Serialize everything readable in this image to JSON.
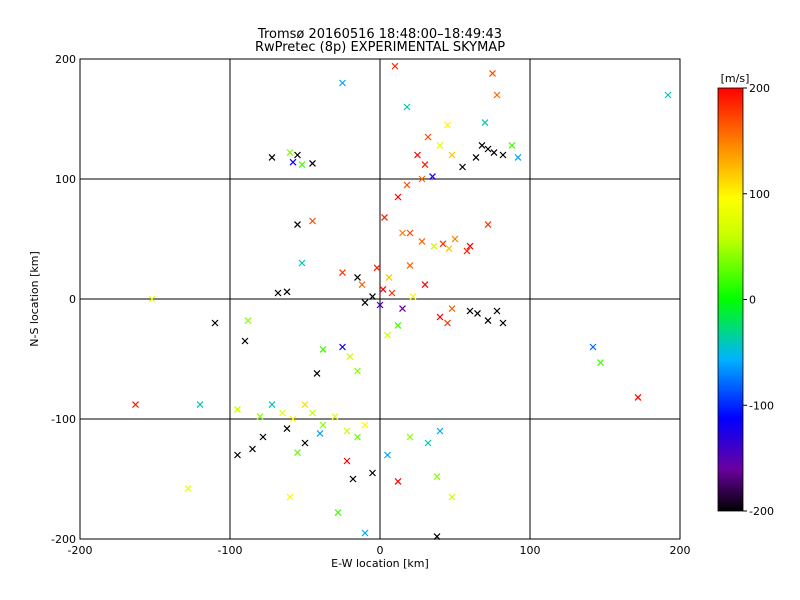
{
  "chart_data": {
    "type": "scatter",
    "title": "Tromsø 20160516 18:48:00–18:49:43",
    "subtitle": "RwPretec (8p) EXPERIMENTAL SKYMAP",
    "xlabel": "E-W location [km]",
    "ylabel": "N-S location [km]",
    "xlim": [
      -200,
      200
    ],
    "ylim": [
      -200,
      200
    ],
    "xticks": [
      "-200",
      "-100",
      "0",
      "100",
      "200"
    ],
    "yticks": [
      "-200",
      "-100",
      "0",
      "100",
      "200"
    ],
    "grid": true,
    "colorbar": {
      "label": "[m/s]",
      "range": [
        -200,
        200
      ],
      "ticks": [
        "200",
        "100",
        "0",
        "-100",
        "-200"
      ]
    },
    "points": [
      {
        "x": -55,
        "y": 120,
        "v": -200,
        "m": "x"
      },
      {
        "x": -72,
        "y": 118,
        "v": -200,
        "m": "x"
      },
      {
        "x": -45,
        "y": 113,
        "v": -200,
        "m": "x"
      },
      {
        "x": -58,
        "y": 114,
        "v": -120,
        "m": "x"
      },
      {
        "x": -60,
        "y": 122,
        "v": 40,
        "m": "x"
      },
      {
        "x": -52,
        "y": 112,
        "v": 20,
        "m": "x"
      },
      {
        "x": -55,
        "y": 62,
        "v": -200,
        "m": "x"
      },
      {
        "x": -45,
        "y": 65,
        "v": 170,
        "m": "x"
      },
      {
        "x": -52,
        "y": 30,
        "v": -40,
        "m": "x"
      },
      {
        "x": -25,
        "y": 180,
        "v": -60,
        "m": "x"
      },
      {
        "x": 10,
        "y": 194,
        "v": 180,
        "m": "x"
      },
      {
        "x": 75,
        "y": 188,
        "v": 170,
        "m": "x"
      },
      {
        "x": 78,
        "y": 170,
        "v": 160,
        "m": "x"
      },
      {
        "x": 192,
        "y": 170,
        "v": -40,
        "m": "x"
      },
      {
        "x": 45,
        "y": 145,
        "v": 100,
        "m": "x"
      },
      {
        "x": 70,
        "y": 147,
        "v": -40,
        "m": "x"
      },
      {
        "x": 40,
        "y": 128,
        "v": 80,
        "m": "x"
      },
      {
        "x": 32,
        "y": 135,
        "v": 170,
        "m": "x"
      },
      {
        "x": 48,
        "y": 120,
        "v": 120,
        "m": "x"
      },
      {
        "x": 68,
        "y": 128,
        "v": -200,
        "m": "x"
      },
      {
        "x": 72,
        "y": 125,
        "v": -200,
        "m": "x"
      },
      {
        "x": 76,
        "y": 122,
        "v": -200,
        "m": "x"
      },
      {
        "x": 82,
        "y": 120,
        "v": -200,
        "m": "x"
      },
      {
        "x": 64,
        "y": 118,
        "v": -200,
        "m": "x"
      },
      {
        "x": 55,
        "y": 110,
        "v": -200,
        "m": "x"
      },
      {
        "x": 88,
        "y": 128,
        "v": 20,
        "m": "x"
      },
      {
        "x": 92,
        "y": 118,
        "v": -60,
        "m": "x"
      },
      {
        "x": 25,
        "y": 120,
        "v": 200,
        "m": "x"
      },
      {
        "x": 30,
        "y": 112,
        "v": 190,
        "m": "x"
      },
      {
        "x": 35,
        "y": 102,
        "v": -120,
        "m": "x"
      },
      {
        "x": 28,
        "y": 100,
        "v": 160,
        "m": "x"
      },
      {
        "x": 18,
        "y": 95,
        "v": 170,
        "m": "x"
      },
      {
        "x": 12,
        "y": 85,
        "v": 200,
        "m": "x"
      },
      {
        "x": 3,
        "y": 68,
        "v": 190,
        "m": "x"
      },
      {
        "x": 15,
        "y": 55,
        "v": 150,
        "m": "x"
      },
      {
        "x": 72,
        "y": 62,
        "v": 180,
        "m": "x"
      },
      {
        "x": 60,
        "y": 44,
        "v": 200,
        "m": "x"
      },
      {
        "x": 58,
        "y": 40,
        "v": 190,
        "m": "x"
      },
      {
        "x": 50,
        "y": 50,
        "v": 150,
        "m": "x"
      },
      {
        "x": 42,
        "y": 46,
        "v": 180,
        "m": "x"
      },
      {
        "x": 46,
        "y": 42,
        "v": 120,
        "m": "x"
      },
      {
        "x": 36,
        "y": 44,
        "v": 60,
        "m": "x"
      },
      {
        "x": 28,
        "y": 48,
        "v": 160,
        "m": "x"
      },
      {
        "x": 20,
        "y": 55,
        "v": 170,
        "m": "x"
      },
      {
        "x": -25,
        "y": 22,
        "v": 180,
        "m": "x"
      },
      {
        "x": -15,
        "y": 18,
        "v": -200,
        "m": "x"
      },
      {
        "x": -68,
        "y": 5,
        "v": -200,
        "m": "x"
      },
      {
        "x": -62,
        "y": 6,
        "v": -200,
        "m": "x"
      },
      {
        "x": -110,
        "y": -20,
        "v": -200,
        "m": "x"
      },
      {
        "x": -88,
        "y": -18,
        "v": 40,
        "m": "x"
      },
      {
        "x": -90,
        "y": -35,
        "v": -200,
        "m": "x"
      },
      {
        "x": -42,
        "y": -62,
        "v": -200,
        "m": "x"
      },
      {
        "x": -38,
        "y": -42,
        "v": 20,
        "m": "x"
      },
      {
        "x": -25,
        "y": -40,
        "v": -120,
        "m": "x"
      },
      {
        "x": -20,
        "y": -48,
        "v": 60,
        "m": "x"
      },
      {
        "x": -15,
        "y": -60,
        "v": 40,
        "m": "x"
      },
      {
        "x": 5,
        "y": -30,
        "v": 60,
        "m": "x"
      },
      {
        "x": 12,
        "y": -22,
        "v": 20,
        "m": "x"
      },
      {
        "x": 40,
        "y": -15,
        "v": 200,
        "m": "x"
      },
      {
        "x": 45,
        "y": -20,
        "v": 180,
        "m": "x"
      },
      {
        "x": 48,
        "y": -8,
        "v": 160,
        "m": "x"
      },
      {
        "x": 60,
        "y": -10,
        "v": -200,
        "m": "x"
      },
      {
        "x": 65,
        "y": -12,
        "v": -200,
        "m": "x"
      },
      {
        "x": 72,
        "y": -18,
        "v": -200,
        "m": "x"
      },
      {
        "x": 78,
        "y": -10,
        "v": -200,
        "m": "x"
      },
      {
        "x": 82,
        "y": -20,
        "v": -200,
        "m": "x"
      },
      {
        "x": 142,
        "y": -40,
        "v": -80,
        "m": "x"
      },
      {
        "x": 147,
        "y": -53,
        "v": 20,
        "m": "x"
      },
      {
        "x": 172,
        "y": -82,
        "v": 200,
        "m": "x"
      },
      {
        "x": -163,
        "y": -88,
        "v": 190,
        "m": "x"
      },
      {
        "x": -120,
        "y": -88,
        "v": -40,
        "m": "x"
      },
      {
        "x": -95,
        "y": -92,
        "v": 60,
        "m": "x"
      },
      {
        "x": -80,
        "y": -98,
        "v": 40,
        "m": "x"
      },
      {
        "x": -72,
        "y": -88,
        "v": -40,
        "m": "x"
      },
      {
        "x": -65,
        "y": -95,
        "v": 80,
        "m": "x"
      },
      {
        "x": -58,
        "y": -100,
        "v": 100,
        "m": "x"
      },
      {
        "x": -50,
        "y": -88,
        "v": 110,
        "m": "x"
      },
      {
        "x": -45,
        "y": -95,
        "v": 60,
        "m": "x"
      },
      {
        "x": -38,
        "y": -105,
        "v": 40,
        "m": "x"
      },
      {
        "x": -30,
        "y": -98,
        "v": 80,
        "m": "x"
      },
      {
        "x": -22,
        "y": -110,
        "v": 60,
        "m": "x"
      },
      {
        "x": -15,
        "y": -115,
        "v": 30,
        "m": "x"
      },
      {
        "x": -10,
        "y": -105,
        "v": 100,
        "m": "x"
      },
      {
        "x": -78,
        "y": -115,
        "v": -200,
        "m": "x"
      },
      {
        "x": -62,
        "y": -108,
        "v": -200,
        "m": "x"
      },
      {
        "x": -50,
        "y": -120,
        "v": -200,
        "m": "x"
      },
      {
        "x": -40,
        "y": -112,
        "v": -60,
        "m": "x"
      },
      {
        "x": -95,
        "y": -130,
        "v": -200,
        "m": "x"
      },
      {
        "x": -85,
        "y": -125,
        "v": -200,
        "m": "x"
      },
      {
        "x": -55,
        "y": -128,
        "v": 30,
        "m": "x"
      },
      {
        "x": -22,
        "y": -135,
        "v": 200,
        "m": "x"
      },
      {
        "x": -18,
        "y": -150,
        "v": -200,
        "m": "x"
      },
      {
        "x": -5,
        "y": -145,
        "v": -200,
        "m": "x"
      },
      {
        "x": 5,
        "y": -130,
        "v": -60,
        "m": "x"
      },
      {
        "x": 12,
        "y": -152,
        "v": 200,
        "m": "x"
      },
      {
        "x": 20,
        "y": -115,
        "v": 40,
        "m": "x"
      },
      {
        "x": 32,
        "y": -120,
        "v": -40,
        "m": "x"
      },
      {
        "x": 40,
        "y": -110,
        "v": -60,
        "m": "x"
      },
      {
        "x": 38,
        "y": -198,
        "v": -200,
        "m": "x"
      },
      {
        "x": -10,
        "y": -195,
        "v": -60,
        "m": "x"
      },
      {
        "x": -28,
        "y": -178,
        "v": 20,
        "m": "x"
      },
      {
        "x": -60,
        "y": -165,
        "v": 100,
        "m": "x"
      },
      {
        "x": -128,
        "y": -158,
        "v": 80,
        "m": "x"
      },
      {
        "x": -152,
        "y": 0,
        "v": 80,
        "m": "x"
      },
      {
        "x": 38,
        "y": -148,
        "v": 40,
        "m": "x"
      },
      {
        "x": 48,
        "y": -165,
        "v": 60,
        "m": "x"
      },
      {
        "x": 18,
        "y": 160,
        "v": -40,
        "m": "x"
      },
      {
        "x": 2,
        "y": 8,
        "v": 200,
        "m": "x"
      },
      {
        "x": 8,
        "y": 5,
        "v": 180,
        "m": "x"
      },
      {
        "x": -5,
        "y": 2,
        "v": -200,
        "m": "x"
      },
      {
        "x": 0,
        "y": -5,
        "v": -150,
        "m": "x"
      },
      {
        "x": -10,
        "y": -3,
        "v": -200,
        "m": "x"
      },
      {
        "x": 15,
        "y": -8,
        "v": -160,
        "m": "x"
      },
      {
        "x": 22,
        "y": 2,
        "v": 100,
        "m": "x"
      },
      {
        "x": -12,
        "y": 12,
        "v": 160,
        "m": "x"
      },
      {
        "x": 6,
        "y": 18,
        "v": 120,
        "m": "x"
      },
      {
        "x": -2,
        "y": 26,
        "v": 190,
        "m": "x"
      },
      {
        "x": 30,
        "y": 12,
        "v": 200,
        "m": "x"
      },
      {
        "x": 20,
        "y": 28,
        "v": 160,
        "m": "x"
      }
    ]
  }
}
